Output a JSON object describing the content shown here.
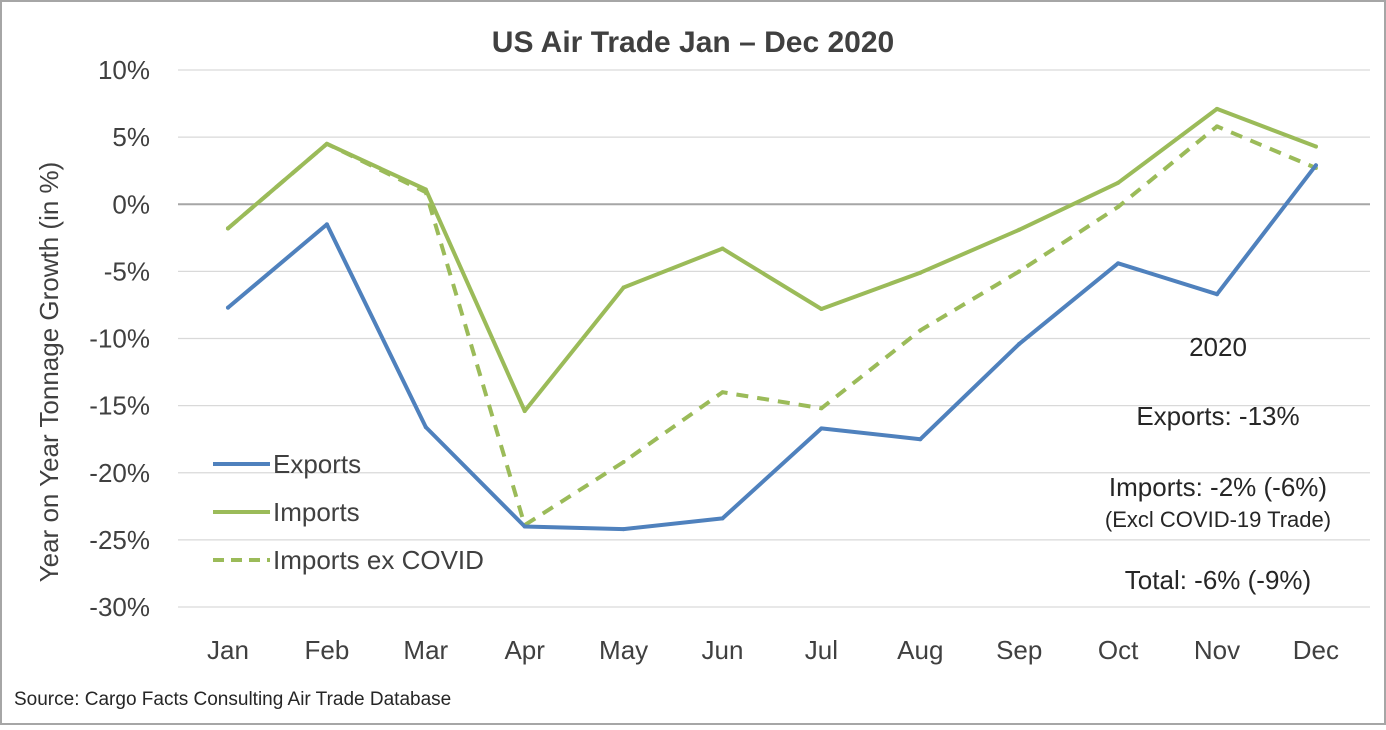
{
  "colors": {
    "exports": "#4f81bd",
    "imports": "#9bbb59",
    "grid": "#d9d9d9",
    "zero_line": "#a6a6a6",
    "border": "#a6a6a6",
    "text": "#404040"
  },
  "chart_data": {
    "type": "line",
    "title": "US Air Trade Jan – Dec 2020",
    "xlabel": "",
    "ylabel": "Year on Year Tonnage Growth (in %)",
    "categories": [
      "Jan",
      "Feb",
      "Mar",
      "Apr",
      "May",
      "Jun",
      "Jul",
      "Aug",
      "Sep",
      "Oct",
      "Nov",
      "Dec"
    ],
    "ylim": [
      -30,
      10
    ],
    "yticks": [
      10,
      5,
      0,
      -5,
      -10,
      -15,
      -20,
      -25,
      -30
    ],
    "ytick_labels": [
      "10%",
      "5%",
      "0%",
      "-5%",
      "-10%",
      "-15%",
      "-20%",
      "-25%",
      "-30%"
    ],
    "grid": true,
    "legend_position": "bottom-left",
    "series": [
      {
        "name": "Exports",
        "style": "solid",
        "color": "#4f81bd",
        "values": [
          -7.7,
          -1.5,
          -16.6,
          -24.0,
          -24.2,
          -23.4,
          -16.7,
          -17.5,
          -10.4,
          -4.4,
          -6.7,
          2.9
        ]
      },
      {
        "name": "Imports",
        "style": "solid",
        "color": "#9bbb59",
        "values": [
          -1.8,
          4.5,
          1.1,
          -15.4,
          -6.2,
          -3.3,
          -7.8,
          -5.1,
          -1.9,
          1.6,
          7.1,
          4.3
        ]
      },
      {
        "name": "Imports ex COVID",
        "style": "dashed",
        "color": "#9bbb59",
        "values": [
          -1.8,
          4.5,
          0.9,
          -23.9,
          -19.2,
          -14.0,
          -15.2,
          -9.4,
          -5.0,
          -0.2,
          5.8,
          2.7
        ]
      }
    ],
    "annotations": {
      "year": "2020",
      "exports": "Exports: -13%",
      "imports": "Imports: -2% (-6%)",
      "imports_note": "(Excl COVID-19 Trade)",
      "total": "Total: -6% (-9%)"
    }
  },
  "source": "Source: Cargo Facts Consulting Air Trade Database"
}
